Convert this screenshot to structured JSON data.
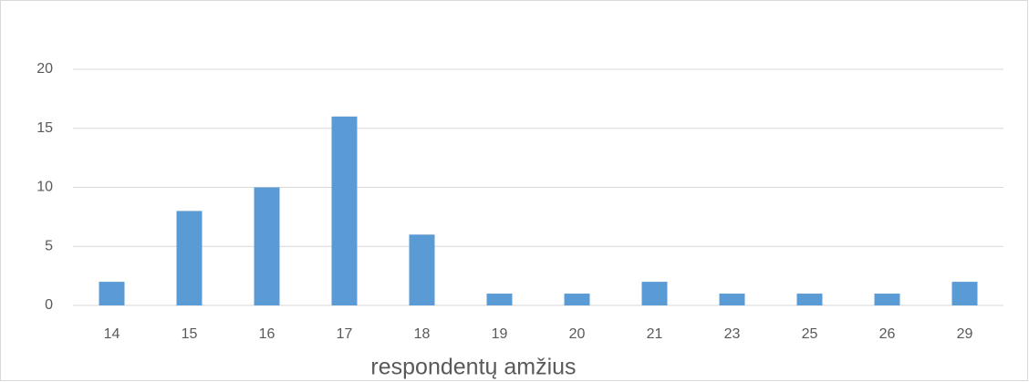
{
  "chart_data": {
    "type": "bar",
    "x_label": "respondentų amžius",
    "categories": [
      "14",
      "15",
      "16",
      "17",
      "18",
      "19",
      "20",
      "21",
      "23",
      "25",
      "26",
      "29"
    ],
    "values": [
      2,
      8,
      10,
      16,
      6,
      1,
      1,
      2,
      1,
      1,
      1,
      2
    ],
    "color": "#5b9bd5",
    "ylim": [
      0,
      20
    ],
    "yticks": [
      0,
      5,
      10,
      15,
      20
    ],
    "grid": true
  }
}
